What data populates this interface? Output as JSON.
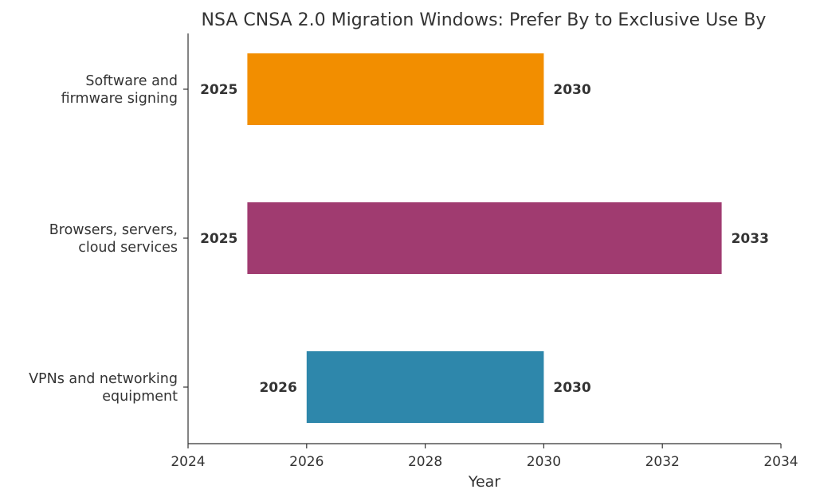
{
  "chart_data": {
    "type": "bar",
    "orientation": "horizontal-range",
    "title": "NSA CNSA 2.0 Migration Windows: Prefer By to Exclusive Use By",
    "xlabel": "Year",
    "ylabel": "",
    "xlim": [
      2024,
      2034
    ],
    "xticks": [
      "2024",
      "2026",
      "2028",
      "2030",
      "2032",
      "2034"
    ],
    "grid": false,
    "categories": [
      {
        "lines": [
          "Software and",
          "firmware signing"
        ],
        "start": 2025,
        "end": 2030,
        "start_label": "2025",
        "end_label": "2030",
        "color": "#F28E00"
      },
      {
        "lines": [
          "Browsers, servers,",
          "cloud services"
        ],
        "start": 2025,
        "end": 2033,
        "start_label": "2025",
        "end_label": "2033",
        "color": "#A03B70"
      },
      {
        "lines": [
          "VPNs and networking",
          "equipment"
        ],
        "start": 2026,
        "end": 2030,
        "start_label": "2026",
        "end_label": "2030",
        "color": "#2E87AB"
      }
    ]
  }
}
